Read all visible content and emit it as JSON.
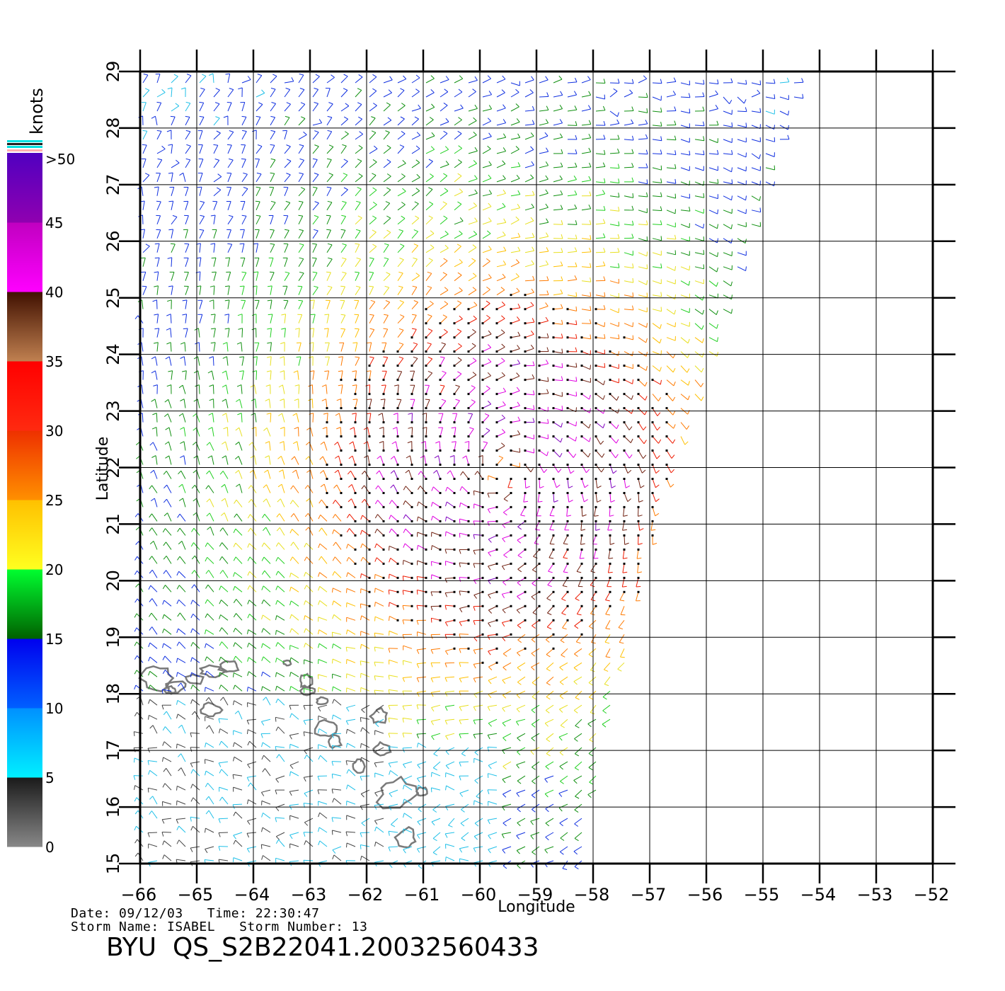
{
  "map": {
    "x_axis": {
      "label": "Longitude",
      "min": -66,
      "max": -52,
      "ticks": [
        "−66",
        "−65",
        "−64",
        "−63",
        "−62",
        "−61",
        "−60",
        "−59",
        "−58",
        "−57",
        "−56",
        "−55",
        "−54",
        "−53",
        "−52"
      ]
    },
    "y_axis": {
      "label": "Latitude",
      "min": 15,
      "max": 29,
      "ticks": [
        "15",
        "16",
        "17",
        "18",
        "19",
        "20",
        "21",
        "22",
        "23",
        "24",
        "25",
        "26",
        "27",
        "28",
        "29"
      ]
    },
    "grid": true,
    "wind_field": {
      "type": "wind-barbs",
      "storm_center": {
        "lon": -59.6,
        "lat": 21.9
      },
      "swath_edge": [
        [
          -54.3,
          29
        ],
        [
          -56.9,
          21
        ],
        [
          -58.2,
          15
        ]
      ]
    },
    "islands_color": "#7a7a7a"
  },
  "colorbar": {
    "unit_label": "knots",
    "top_label": ">50",
    "tick_labels": [
      "0",
      "5",
      "10",
      "15",
      "20",
      "25",
      "30",
      "35",
      "40",
      "45"
    ],
    "bands": [
      {
        "from": 0,
        "to": 5,
        "colors": [
          "#888888",
          "#1a1a1a"
        ]
      },
      {
        "from": 5,
        "to": 10,
        "colors": [
          "#00f0ff",
          "#0090ff"
        ]
      },
      {
        "from": 10,
        "to": 15,
        "colors": [
          "#0060ff",
          "#0000ee"
        ]
      },
      {
        "from": 15,
        "to": 20,
        "colors": [
          "#006000",
          "#00ff30"
        ]
      },
      {
        "from": 20,
        "to": 25,
        "colors": [
          "#ffff20",
          "#ffc000"
        ]
      },
      {
        "from": 25,
        "to": 30,
        "colors": [
          "#ff9000",
          "#ee3000"
        ]
      },
      {
        "from": 30,
        "to": 35,
        "colors": [
          "#ff2a10",
          "#ff0000"
        ]
      },
      {
        "from": 35,
        "to": 40,
        "colors": [
          "#c08050",
          "#401000"
        ]
      },
      {
        "from": 40,
        "to": 45,
        "colors": [
          "#ff00ff",
          "#c000c0"
        ]
      },
      {
        "from": 45,
        "to": 50,
        "colors": [
          "#9000b0",
          "#5000c0"
        ]
      }
    ]
  },
  "info": {
    "date_line": "Date: 09/12/03   Time: 22:30:47",
    "storm_line": "Storm Name: ISABEL   Storm Number: 13",
    "title": "BYU  QS_S2B22041.20032560433"
  }
}
